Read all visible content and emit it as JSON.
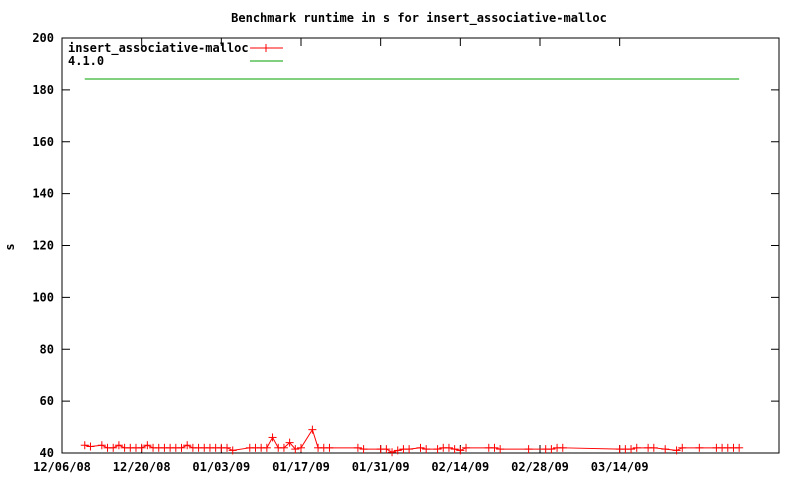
{
  "chart_data": {
    "type": "line",
    "title": "Benchmark runtime in s for insert_associative-malloc",
    "xlabel": "",
    "ylabel": "s",
    "xlim": [
      "2008-12-06",
      "2009-04-11"
    ],
    "ylim": [
      40,
      200
    ],
    "x_ticks": [
      "12/06/08",
      "12/20/08",
      "01/03/09",
      "01/17/09",
      "01/31/09",
      "02/14/09",
      "02/28/09",
      "03/14/09"
    ],
    "x_tick_dates": [
      "2008-12-06",
      "2008-12-20",
      "2009-01-03",
      "2009-01-17",
      "2009-01-31",
      "2009-02-14",
      "2009-02-28",
      "2009-03-14"
    ],
    "y_ticks": [
      40,
      60,
      80,
      100,
      120,
      140,
      160,
      180,
      200
    ],
    "grid": false,
    "legend_position": "top-left",
    "series": [
      {
        "name": "insert_associative-malloc",
        "color": "#ff0000",
        "marker": "plus",
        "points": [
          [
            "2008-12-10",
            43
          ],
          [
            "2008-12-11",
            42.5
          ],
          [
            "2008-12-13",
            43
          ],
          [
            "2008-12-14",
            42
          ],
          [
            "2008-12-15",
            42
          ],
          [
            "2008-12-16",
            43
          ],
          [
            "2008-12-17",
            42
          ],
          [
            "2008-12-18",
            42
          ],
          [
            "2008-12-19",
            42
          ],
          [
            "2008-12-20",
            42
          ],
          [
            "2008-12-21",
            43
          ],
          [
            "2008-12-22",
            42
          ],
          [
            "2008-12-23",
            42
          ],
          [
            "2008-12-24",
            42
          ],
          [
            "2008-12-25",
            42
          ],
          [
            "2008-12-26",
            42
          ],
          [
            "2008-12-27",
            42
          ],
          [
            "2008-12-28",
            43
          ],
          [
            "2008-12-29",
            42
          ],
          [
            "2008-12-30",
            42
          ],
          [
            "2008-12-31",
            42
          ],
          [
            "2009-01-01",
            42
          ],
          [
            "2009-01-02",
            42
          ],
          [
            "2009-01-03",
            42
          ],
          [
            "2009-01-04",
            42
          ],
          [
            "2009-01-05",
            41
          ],
          [
            "2009-01-08",
            42
          ],
          [
            "2009-01-09",
            42
          ],
          [
            "2009-01-10",
            42
          ],
          [
            "2009-01-11",
            42
          ],
          [
            "2009-01-12",
            46
          ],
          [
            "2009-01-13",
            42
          ],
          [
            "2009-01-14",
            42
          ],
          [
            "2009-01-15",
            44
          ],
          [
            "2009-01-16",
            41.5
          ],
          [
            "2009-01-17",
            42
          ],
          [
            "2009-01-19",
            49
          ],
          [
            "2009-01-20",
            42
          ],
          [
            "2009-01-21",
            42
          ],
          [
            "2009-01-22",
            42
          ],
          [
            "2009-01-27",
            42
          ],
          [
            "2009-01-28",
            41.5
          ],
          [
            "2009-01-31",
            41.5
          ],
          [
            "2009-02-01",
            41.5
          ],
          [
            "2009-02-02",
            40.3
          ],
          [
            "2009-02-03",
            41
          ],
          [
            "2009-02-04",
            41.5
          ],
          [
            "2009-02-05",
            41.5
          ],
          [
            "2009-02-07",
            42
          ],
          [
            "2009-02-08",
            41.5
          ],
          [
            "2009-02-10",
            41.5
          ],
          [
            "2009-02-11",
            42
          ],
          [
            "2009-02-12",
            42
          ],
          [
            "2009-02-13",
            41.5
          ],
          [
            "2009-02-14",
            41
          ],
          [
            "2009-02-15",
            42
          ],
          [
            "2009-02-19",
            42
          ],
          [
            "2009-02-20",
            42
          ],
          [
            "2009-02-21",
            41.5
          ],
          [
            "2009-02-26",
            41.5
          ],
          [
            "2009-03-01",
            41.5
          ],
          [
            "2009-03-02",
            41.5
          ],
          [
            "2009-03-03",
            42
          ],
          [
            "2009-03-04",
            42
          ],
          [
            "2009-03-14",
            41.5
          ],
          [
            "2009-03-15",
            41.5
          ],
          [
            "2009-03-16",
            41.5
          ],
          [
            "2009-03-17",
            42
          ],
          [
            "2009-03-19",
            42
          ],
          [
            "2009-03-20",
            42
          ],
          [
            "2009-03-22",
            41.5
          ],
          [
            "2009-03-24",
            41
          ],
          [
            "2009-03-25",
            42
          ],
          [
            "2009-03-28",
            42
          ],
          [
            "2009-03-31",
            42
          ],
          [
            "2009-04-01",
            42
          ],
          [
            "2009-04-02",
            42
          ],
          [
            "2009-04-03",
            42
          ],
          [
            "2009-04-04",
            42
          ]
        ]
      },
      {
        "name": "4.1.0",
        "color": "#00a000",
        "marker": "none",
        "points": [
          [
            "2008-12-10",
            184.2
          ],
          [
            "2009-04-04",
            184.2
          ]
        ]
      }
    ]
  }
}
